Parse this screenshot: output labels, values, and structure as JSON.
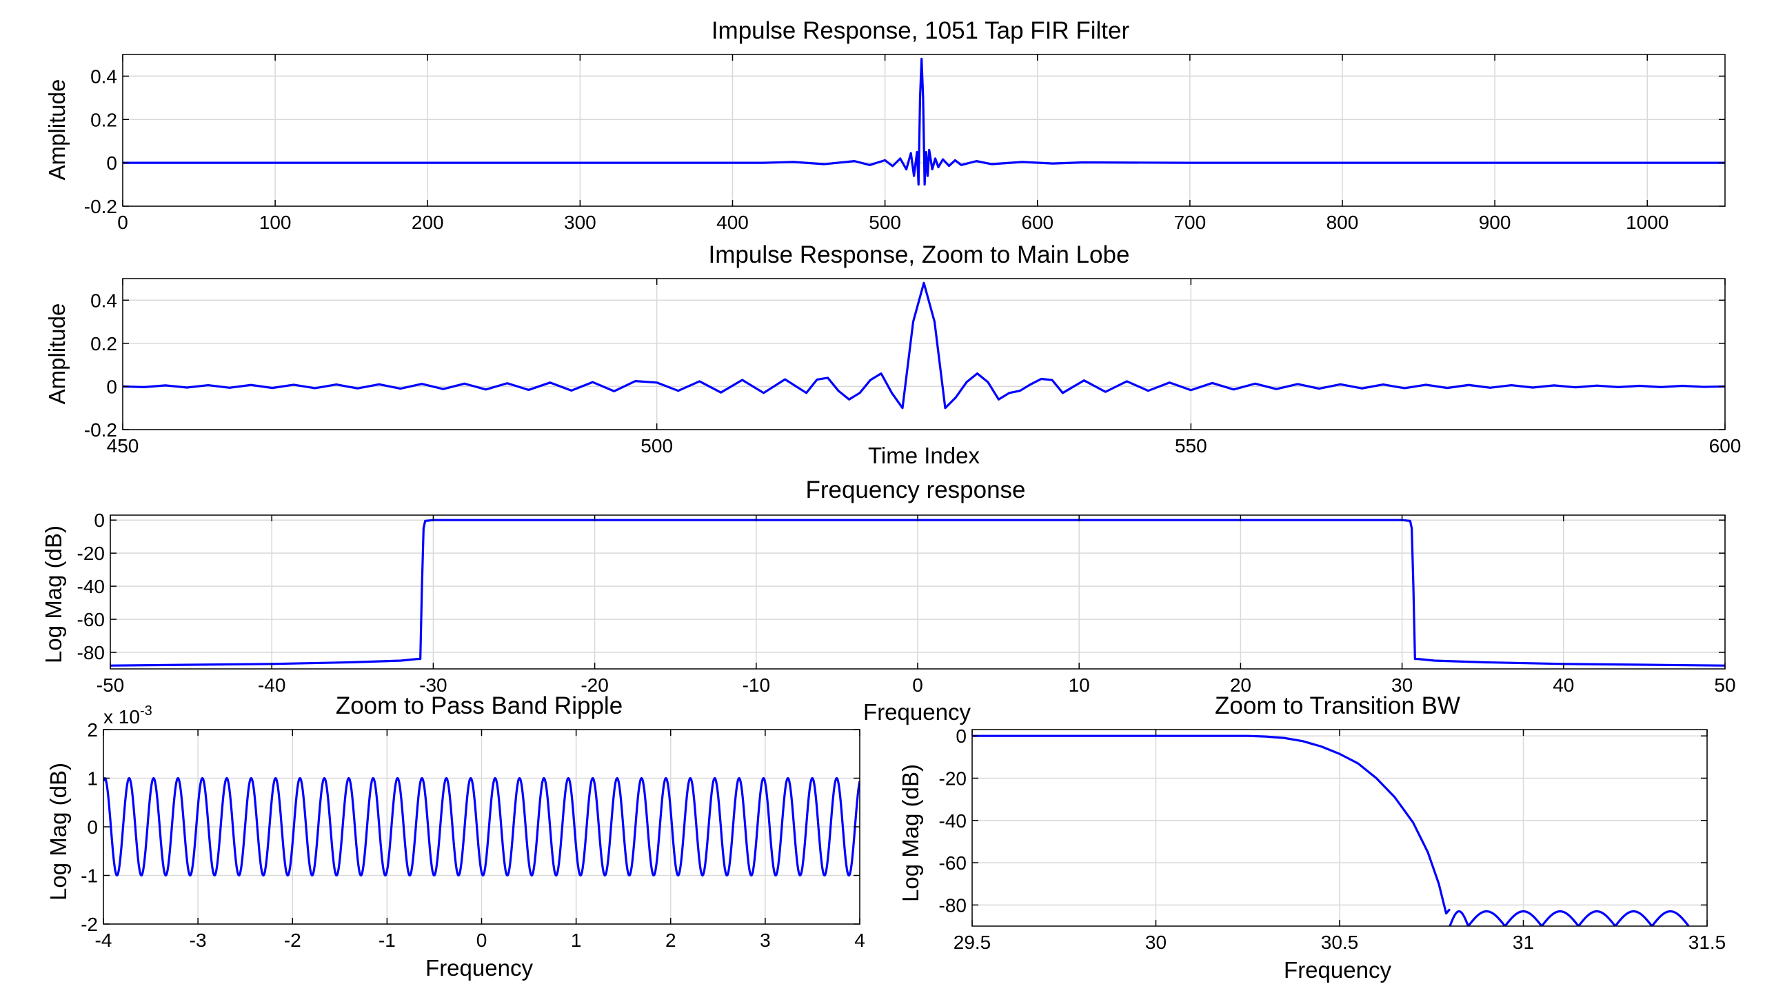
{
  "figure": {
    "line_color": "#0000ff",
    "grid_color": "#d9d9d9",
    "axis_color": "#000000"
  },
  "chart_data": [
    {
      "type": "line",
      "title": "Impulse Response, 1051 Tap FIR Filter",
      "xlabel": "",
      "ylabel": "Amplitude",
      "xlim": [
        0,
        1051
      ],
      "ylim": [
        -0.2,
        0.5
      ],
      "x_ticks": [
        0,
        100,
        200,
        300,
        400,
        500,
        600,
        700,
        800,
        900,
        1000
      ],
      "x_tick_labels": [
        "0",
        "100",
        "200",
        "300",
        "400",
        "500",
        "600",
        "700",
        "800",
        "900",
        "1000"
      ],
      "y_ticks": [
        -0.2,
        0,
        0.2,
        0.4
      ],
      "y_tick_labels": [
        "-0.2",
        "0",
        "0.2",
        "0.4"
      ],
      "grid": true,
      "series": [
        {
          "x": [
            0,
            100,
            200,
            300,
            420,
            440,
            460,
            480,
            490,
            500,
            505,
            510,
            514,
            517,
            519,
            521,
            522,
            523,
            524,
            525,
            526,
            527,
            528,
            529,
            531,
            533,
            535,
            538,
            542,
            546,
            550,
            560,
            570,
            590,
            610,
            630,
            700,
            800,
            900,
            1000,
            1051
          ],
          "y": [
            0,
            0,
            0,
            0,
            0,
            0.004,
            -0.006,
            0.008,
            -0.01,
            0.012,
            -0.015,
            0.02,
            -0.03,
            0.045,
            -0.06,
            0.05,
            -0.1,
            0.3,
            0.48,
            0.3,
            -0.1,
            0.05,
            -0.06,
            0.06,
            -0.03,
            0.02,
            -0.02,
            0.016,
            -0.014,
            0.012,
            -0.01,
            0.008,
            -0.006,
            0.004,
            -0.003,
            0.002,
            0,
            0,
            0,
            0,
            0
          ]
        }
      ]
    },
    {
      "type": "line",
      "title": "Impulse Response, Zoom to Main Lobe",
      "xlabel": "Time Index",
      "ylabel": "Amplitude",
      "xlim": [
        450,
        600
      ],
      "ylim": [
        -0.2,
        0.5
      ],
      "x_ticks": [
        450,
        500,
        550,
        600
      ],
      "x_tick_labels": [
        "450",
        "500",
        "550",
        "600"
      ],
      "y_ticks": [
        -0.2,
        0,
        0.2,
        0.4
      ],
      "y_tick_labels": [
        "-0.2",
        "0",
        "0.2",
        "0.4"
      ],
      "grid": true,
      "series": [
        {
          "x": [
            450,
            452,
            454,
            456,
            458,
            460,
            462,
            464,
            466,
            468,
            470,
            472,
            474,
            476,
            478,
            480,
            482,
            484,
            486,
            488,
            490,
            492,
            494,
            496,
            498,
            500,
            502,
            504,
            506,
            508,
            510,
            512,
            514,
            515,
            516,
            517,
            518,
            519,
            520,
            521,
            522,
            523,
            524,
            525,
            526,
            527,
            528,
            529,
            530,
            531,
            532,
            533,
            534,
            535,
            536,
            537,
            538,
            540,
            542,
            544,
            546,
            548,
            550,
            552,
            554,
            556,
            558,
            560,
            562,
            564,
            566,
            568,
            570,
            572,
            574,
            576,
            578,
            580,
            582,
            584,
            586,
            588,
            590,
            592,
            594,
            596,
            598,
            600
          ],
          "y": [
            0,
            -0.003,
            0.005,
            -0.005,
            0.006,
            -0.006,
            0.007,
            -0.007,
            0.008,
            -0.008,
            0.009,
            -0.009,
            0.01,
            -0.01,
            0.012,
            -0.012,
            0.013,
            -0.014,
            0.015,
            -0.016,
            0.018,
            -0.019,
            0.02,
            -0.022,
            0.025,
            0.018,
            -0.02,
            0.024,
            -0.028,
            0.03,
            -0.03,
            0.033,
            -0.03,
            0.032,
            0.04,
            -0.02,
            -0.06,
            -0.03,
            0.03,
            0.06,
            -0.03,
            -0.1,
            0.3,
            0.48,
            0.3,
            -0.1,
            -0.05,
            0.02,
            0.06,
            0.02,
            -0.06,
            -0.03,
            -0.02,
            0.01,
            0.035,
            0.03,
            -0.03,
            0.028,
            -0.025,
            0.024,
            -0.02,
            0.018,
            -0.017,
            0.016,
            -0.014,
            0.013,
            -0.012,
            0.011,
            -0.01,
            0.01,
            -0.009,
            0.009,
            -0.008,
            0.008,
            -0.007,
            0.007,
            -0.006,
            0.006,
            -0.005,
            0.005,
            -0.004,
            0.004,
            -0.003,
            0.003,
            -0.003,
            0.003,
            -0.002,
            0
          ]
        }
      ]
    },
    {
      "type": "line",
      "title": "Frequency response",
      "xlabel": "Frequency",
      "ylabel": "Log Mag (dB)",
      "xlim": [
        -50,
        50
      ],
      "ylim": [
        -90,
        3
      ],
      "x_ticks": [
        -50,
        -40,
        -30,
        -20,
        -10,
        0,
        10,
        20,
        30,
        40,
        50
      ],
      "x_tick_labels": [
        "-50",
        "-40",
        "-30",
        "-20",
        "-10",
        "0",
        "10",
        "20",
        "30",
        "40",
        "50"
      ],
      "y_ticks": [
        -80,
        -60,
        -40,
        -20,
        0
      ],
      "y_tick_labels": [
        "-80",
        "-60",
        "-40",
        "-20",
        "0"
      ],
      "grid": true,
      "series": [
        {
          "x": [
            -50,
            -45,
            -40,
            -35,
            -32,
            -31,
            -30.8,
            -30.7,
            -30.6,
            -30.5,
            -30,
            0,
            30,
            30.5,
            30.6,
            30.7,
            30.8,
            31,
            32,
            35,
            40,
            45,
            50
          ],
          "y": [
            -88,
            -87.5,
            -87,
            -86,
            -85,
            -84,
            -84,
            -40,
            -5,
            -0.5,
            0,
            0,
            0,
            -0.5,
            -5,
            -40,
            -84,
            -84,
            -85,
            -86,
            -87,
            -87.5,
            -88
          ]
        }
      ]
    },
    {
      "type": "line",
      "title": "Zoom to Pass Band Ripple",
      "xlabel": "Frequency",
      "ylabel": "Log Mag (dB)",
      "y_multiplier": "x 10-3",
      "xlim": [
        -4,
        4
      ],
      "ylim": [
        -2,
        2
      ],
      "x_ticks": [
        -4,
        -3,
        -2,
        -1,
        0,
        1,
        2,
        3,
        4
      ],
      "x_tick_labels": [
        "-4",
        "-3",
        "-2",
        "-1",
        "0",
        "1",
        "2",
        "3",
        "4"
      ],
      "y_ticks": [
        -2,
        -1,
        0,
        1,
        2
      ],
      "y_tick_labels": [
        "-2",
        "-1",
        "0",
        "1",
        "2"
      ],
      "grid": true,
      "ripple": {
        "amplitude": 1,
        "cycles": 31,
        "phase_deg": 70
      }
    },
    {
      "type": "line",
      "title": "Zoom to Transition BW",
      "xlabel": "Frequency",
      "ylabel": "Log Mag (dB)",
      "xlim": [
        29.5,
        31.5
      ],
      "ylim": [
        -90,
        3
      ],
      "x_ticks": [
        29.5,
        30,
        30.5,
        31,
        31.5
      ],
      "x_tick_labels": [
        "29.5",
        "30",
        "30.5",
        "31",
        "31.5"
      ],
      "y_ticks": [
        -80,
        -60,
        -40,
        -20,
        0
      ],
      "y_tick_labels": [
        "-80",
        "-60",
        "-40",
        "-20",
        "0"
      ],
      "grid": true,
      "series": [
        {
          "x": [
            29.5,
            30.0,
            30.25,
            30.3,
            30.35,
            30.4,
            30.45,
            30.5,
            30.55,
            30.6,
            30.65,
            30.7,
            30.74,
            30.77,
            30.79,
            30.8
          ],
          "y": [
            0,
            0,
            0,
            -0.3,
            -1,
            -2.5,
            -5,
            -8.5,
            -13,
            -20,
            -29,
            -41,
            -55,
            -70,
            -84,
            -82
          ]
        }
      ],
      "stopband_lobes": {
        "x": [
          30.8,
          30.85,
          30.95,
          31.05,
          31.15,
          31.25,
          31.35,
          31.45
        ],
        "floor": -90,
        "peak": -83
      }
    }
  ]
}
